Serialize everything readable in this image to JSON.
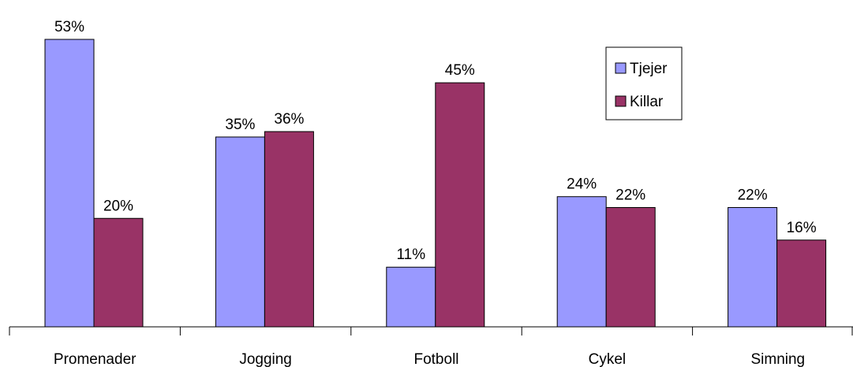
{
  "chart_data": {
    "type": "bar",
    "categories": [
      "Promenader",
      "Jogging",
      "Fotboll",
      "Cykel",
      "Simning"
    ],
    "series": [
      {
        "name": "Tjejer",
        "values": [
          53,
          35,
          11,
          24,
          22
        ],
        "labels": [
          "53%",
          "35%",
          "11%",
          "24%",
          "22%"
        ],
        "color": "#9999ff"
      },
      {
        "name": "Killar",
        "values": [
          20,
          36,
          45,
          22,
          16
        ],
        "labels": [
          "20%",
          "36%",
          "45%",
          "22%",
          "16%"
        ],
        "color": "#993366"
      }
    ],
    "ylim": [
      0,
      53
    ],
    "grid": false,
    "legend_position": "top-right"
  }
}
